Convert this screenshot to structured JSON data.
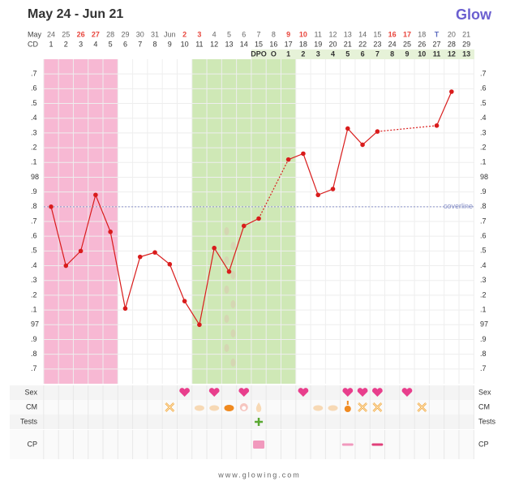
{
  "chart_data": {
    "type": "line",
    "title": "May 24 - Jun 21",
    "logo": "Glow",
    "footer": "www.glowing.com",
    "date_row_label": "May",
    "cd_row_label": "CD",
    "dates": [
      "24",
      "25",
      "26",
      "27",
      "28",
      "29",
      "30",
      "31",
      "Jun",
      "2",
      "3",
      "4",
      "5",
      "6",
      "7",
      "8",
      "9",
      "10",
      "11",
      "12",
      "13",
      "14",
      "15",
      "16",
      "17",
      "18",
      "T",
      "20",
      "21"
    ],
    "date_colors": [
      "#666",
      "#666",
      "#e8453c",
      "#e8453c",
      "#666",
      "#666",
      "#666",
      "#666",
      "#666",
      "#e8453c",
      "#e8453c",
      "#666",
      "#666",
      "#666",
      "#666",
      "#666",
      "#e8453c",
      "#e8453c",
      "#666",
      "#666",
      "#666",
      "#666",
      "#666",
      "#e8453c",
      "#e8453c",
      "#666",
      "#5b6abf",
      "#666",
      "#666"
    ],
    "categories": [
      "1",
      "2",
      "3",
      "4",
      "5",
      "6",
      "7",
      "8",
      "9",
      "10",
      "11",
      "12",
      "13",
      "14",
      "15",
      "16",
      "17",
      "18",
      "19",
      "20",
      "21",
      "22",
      "23",
      "24",
      "25",
      "26",
      "27",
      "28",
      "29"
    ],
    "dpo_row": {
      "label": "DPO",
      "color": "#e6f2d8",
      "labels": [
        null,
        null,
        null,
        null,
        null,
        null,
        null,
        null,
        null,
        null,
        null,
        null,
        null,
        null,
        null,
        "O",
        "1",
        "2",
        "3",
        "4",
        "5",
        "6",
        "7",
        "8",
        "9",
        "10",
        "11",
        "12",
        "13"
      ]
    },
    "series": [
      {
        "name": "Temperature",
        "color": "#d91c1c",
        "values": [
          97.8,
          97.4,
          97.5,
          97.88,
          97.63,
          97.11,
          97.46,
          97.49,
          97.41,
          97.16,
          97.0,
          97.52,
          97.36,
          97.67,
          97.72,
          null,
          98.12,
          98.16,
          97.88,
          97.92,
          98.33,
          98.22,
          98.31,
          null,
          null,
          null,
          98.35,
          98.58,
          null
        ]
      }
    ],
    "ylim": [
      96.6,
      98.8
    ],
    "yticks": [
      {
        "value": 96.7,
        "label": ".7"
      },
      {
        "value": 96.8,
        "label": ".8"
      },
      {
        "value": 96.9,
        "label": ".9"
      },
      97,
      {
        "value": 97.1,
        "label": ".1"
      },
      {
        "value": 97.2,
        "label": ".2"
      },
      {
        "value": 97.3,
        "label": ".3"
      },
      {
        "value": 97.4,
        "label": ".4"
      },
      {
        "value": 97.5,
        "label": ".5"
      },
      {
        "value": 97.6,
        "label": ".6"
      },
      {
        "value": 97.7,
        "label": ".7"
      },
      {
        "value": 97.8,
        "label": ".8"
      },
      {
        "value": 97.9,
        "label": ".9"
      },
      98,
      {
        "value": 98.1,
        "label": ".1"
      },
      {
        "value": 98.2,
        "label": ".2"
      },
      {
        "value": 98.3,
        "label": ".3"
      },
      {
        "value": 98.4,
        "label": ".4"
      },
      {
        "value": 98.5,
        "label": ".5"
      },
      {
        "value": 98.6,
        "label": ".6"
      },
      {
        "value": 98.7,
        "label": ".7"
      }
    ],
    "grid": true,
    "coverline": {
      "value": 97.8,
      "label": "coverline",
      "color": "#8a93c9"
    },
    "phases": [
      {
        "start": 1,
        "end": 5,
        "color": "#f7b8d3"
      },
      {
        "start": 11,
        "end": 17,
        "color": "#cfe8b6"
      }
    ],
    "rows": [
      {
        "name": "Sex",
        "items": [
          {
            "day": 10,
            "kind": "heart"
          },
          {
            "day": 12,
            "kind": "heart"
          },
          {
            "day": 14,
            "kind": "heart"
          },
          {
            "day": 18,
            "kind": "heart"
          },
          {
            "day": 21,
            "kind": "heart"
          },
          {
            "day": 22,
            "kind": "heart"
          },
          {
            "day": 23,
            "kind": "heart"
          },
          {
            "day": 25,
            "kind": "heart"
          }
        ]
      },
      {
        "name": "CM",
        "items": [
          {
            "day": 9,
            "kind": "x"
          },
          {
            "day": 11,
            "kind": "cream"
          },
          {
            "day": 12,
            "kind": "cream"
          },
          {
            "day": 13,
            "kind": "sticky"
          },
          {
            "day": 14,
            "kind": "egg"
          },
          {
            "day": 15,
            "kind": "drop"
          },
          {
            "day": 19,
            "kind": "cream"
          },
          {
            "day": 20,
            "kind": "cream"
          },
          {
            "day": 21,
            "kind": "spotting"
          },
          {
            "day": 22,
            "kind": "x"
          },
          {
            "day": 23,
            "kind": "x"
          },
          {
            "day": 26,
            "kind": "x"
          }
        ]
      },
      {
        "name": "Tests",
        "items": [
          {
            "day": 15,
            "kind": "plus"
          }
        ]
      },
      {
        "name": "CP",
        "items": [
          {
            "day": 15,
            "kind": "square"
          },
          {
            "day": 21,
            "kind": "bar-light"
          },
          {
            "day": 23,
            "kind": "bar-dark"
          }
        ]
      }
    ]
  }
}
